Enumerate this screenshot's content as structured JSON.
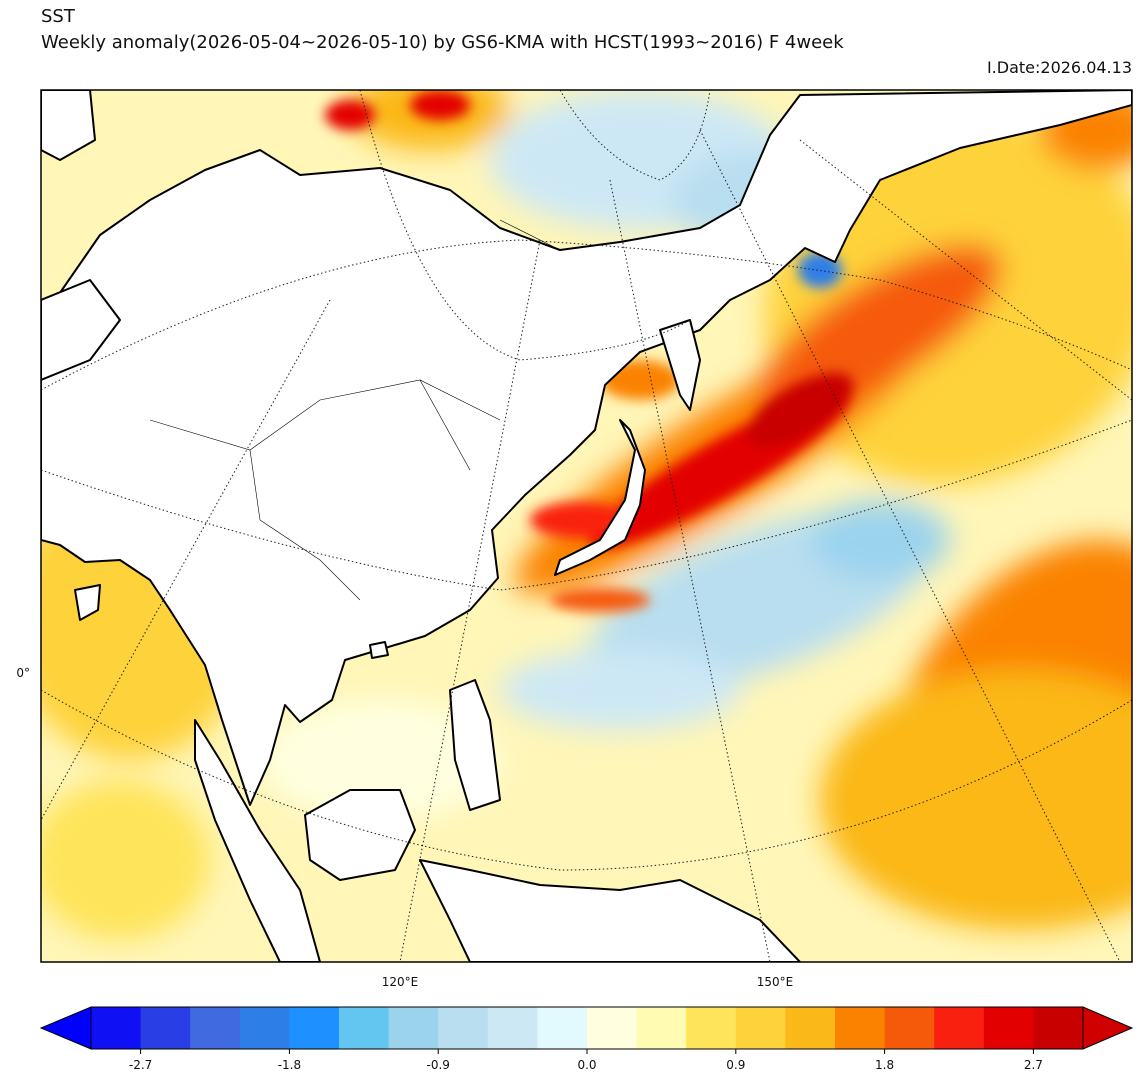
{
  "header": {
    "title": "SST",
    "subtitle": "Weekly anomaly(2026-05-04~2026-05-10) by GS6-KMA with HCST(1993~2016) F 4week",
    "date": "I.Date:2026.04.13"
  },
  "map": {
    "lat_labels": [
      "0°"
    ],
    "lon_labels": [
      "120°E",
      "150°E"
    ]
  },
  "colorbar": {
    "colors": [
      "#1010f5",
      "#2a3ee6",
      "#3f6ae0",
      "#2e7ee8",
      "#1e90ff",
      "#63c6f0",
      "#9bd3ed",
      "#b9def0",
      "#cde8f5",
      "#e2fafd",
      "#ffffe0",
      "#fffbb2",
      "#fee45a",
      "#fed23a",
      "#fbb819",
      "#fb8200",
      "#f55a0a",
      "#f92010",
      "#e30000",
      "#c80000"
    ],
    "extend_colors": [
      "#0000ff",
      "#d00000"
    ],
    "ticks": [
      -2.7,
      -1.8,
      -0.9,
      {
        "value": 0,
        "label": "0.0"
      },
      0.9,
      1.8,
      2.7
    ]
  }
}
